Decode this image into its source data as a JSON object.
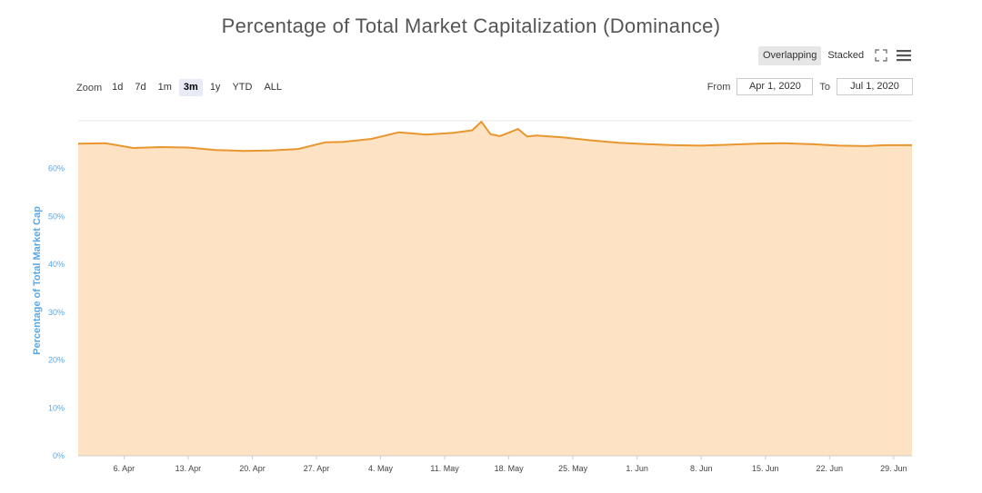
{
  "title": "Percentage of Total Market Capitalization (Dominance)",
  "mode_toggle": {
    "overlapping": "Overlapping",
    "stacked": "Stacked",
    "active": "overlapping"
  },
  "zoom": {
    "label": "Zoom",
    "options": [
      "1d",
      "7d",
      "1m",
      "3m",
      "1y",
      "YTD",
      "ALL"
    ],
    "active": "3m"
  },
  "range": {
    "from_label": "From",
    "from_value": "Apr 1, 2020",
    "to_label": "To",
    "to_value": "Jul 1, 2020"
  },
  "icons": {
    "expand": "expand-icon",
    "menu": "menu-icon"
  },
  "colors": {
    "line": "#e8962f",
    "fill": "#fde3c3",
    "axis_text": "#5aa7e6"
  },
  "chart_data": {
    "type": "area",
    "title": "Percentage of Total Market Capitalization (Dominance)",
    "ylabel": "Percentage of Total Market Cap",
    "xlabel": "",
    "ylim": [
      0,
      70
    ],
    "yticks": [
      "0%",
      "10%",
      "20%",
      "30%",
      "40%",
      "50%",
      "60%"
    ],
    "xlim": [
      "2020-04-01",
      "2020-07-01"
    ],
    "xticks": [
      "6. Apr",
      "13. Apr",
      "20. Apr",
      "27. Apr",
      "4. May",
      "11. May",
      "18. May",
      "25. May",
      "1. Jun",
      "8. Jun",
      "15. Jun",
      "22. Jun",
      "29. Jun"
    ],
    "grid": true,
    "legend": "none",
    "series": [
      {
        "x": [
          "2020-04-01",
          "2020-04-04",
          "2020-04-07",
          "2020-04-10",
          "2020-04-13",
          "2020-04-16",
          "2020-04-19",
          "2020-04-22",
          "2020-04-25",
          "2020-04-28",
          "2020-04-30",
          "2020-05-03",
          "2020-05-06",
          "2020-05-09",
          "2020-05-12",
          "2020-05-14",
          "2020-05-15",
          "2020-05-16",
          "2020-05-17",
          "2020-05-18",
          "2020-05-19",
          "2020-05-20",
          "2020-05-21",
          "2020-05-24",
          "2020-05-27",
          "2020-05-30",
          "2020-06-02",
          "2020-06-05",
          "2020-06-08",
          "2020-06-11",
          "2020-06-14",
          "2020-06-17",
          "2020-06-20",
          "2020-06-23",
          "2020-06-26",
          "2020-06-28",
          "2020-07-01"
        ],
        "values": [
          65.2,
          65.3,
          64.3,
          64.5,
          64.4,
          63.9,
          63.7,
          63.8,
          64.1,
          65.5,
          65.6,
          66.2,
          67.6,
          67.1,
          67.5,
          68.0,
          69.8,
          67.2,
          66.8,
          67.5,
          68.3,
          66.7,
          66.9,
          66.5,
          65.9,
          65.4,
          65.1,
          64.9,
          64.8,
          65.0,
          65.2,
          65.3,
          65.1,
          64.8,
          64.7,
          64.9,
          64.9
        ]
      }
    ]
  }
}
